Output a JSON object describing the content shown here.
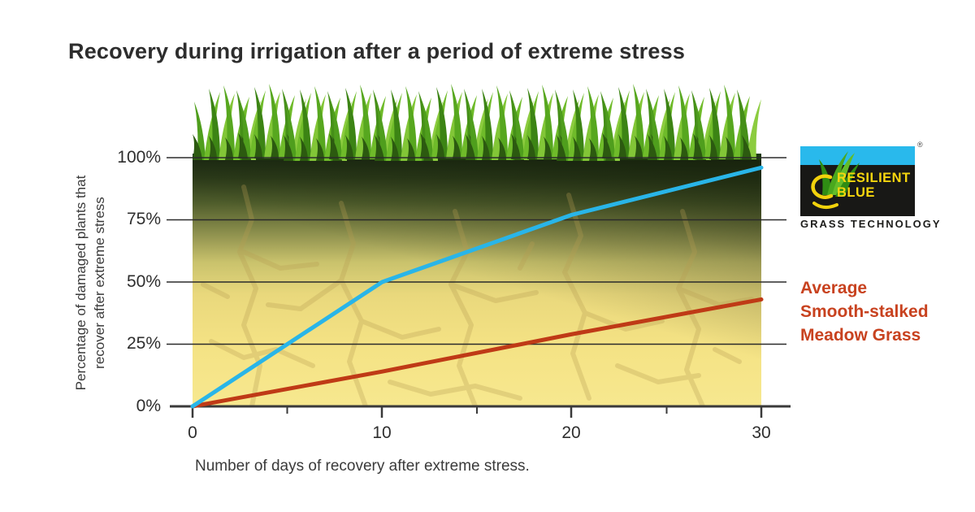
{
  "title": "Recovery during irrigation after a period of extreme stress",
  "logo": {
    "word1": "RESILIENT",
    "word2": "BLUE",
    "subtitle": "GRASS TECHNOLOGY",
    "registered_mark": "®",
    "colors": {
      "band": "#29b9ec",
      "box": "#181816",
      "text": "#f6d60e"
    }
  },
  "legend": {
    "competitor_label": "Average\nSmooth-stalked\nMeadow Grass",
    "text_color": "#c8421f"
  },
  "chart_data": {
    "type": "line",
    "title": "Recovery during irrigation after a period of extreme stress",
    "xlabel": "Number of days of recovery after extreme stress.",
    "ylabel": "Percentage of damaged plants that\nrecover after extreme stress",
    "x": [
      0,
      10,
      20,
      30
    ],
    "xticks": [
      "0",
      "10",
      "20",
      "30"
    ],
    "yticks": [
      "100%",
      "75%",
      "50%",
      "25%",
      "0%"
    ],
    "xlim": [
      0,
      30
    ],
    "ylim": [
      0,
      100
    ],
    "grid": "horizontal",
    "legend_position": "right",
    "series": [
      {
        "name": "Resilient Blue Grass Technology",
        "values": [
          0,
          50,
          77,
          96
        ],
        "color": "#29b5e8"
      },
      {
        "name": "Average Smooth-stalked Meadow Grass",
        "values": [
          0,
          14,
          29,
          43
        ],
        "color": "#bf3a16"
      }
    ]
  }
}
